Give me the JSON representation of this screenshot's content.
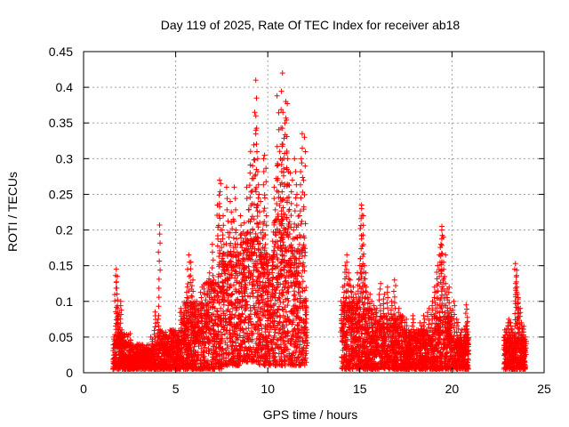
{
  "chart_data": {
    "type": "scatter",
    "title": "Day 119 of 2025, Rate Of TEC Index for receiver ab18",
    "xlabel": "GPS time / hours",
    "ylabel": "ROTI / TECUs",
    "xlim": [
      0,
      25
    ],
    "ylim": [
      0,
      0.45
    ],
    "xticks": [
      "0",
      "5",
      "10",
      "15",
      "20",
      "25"
    ],
    "yticks": [
      "0",
      "0.05",
      "0.1",
      "0.15",
      "0.2",
      "0.25",
      "0.3",
      "0.35",
      "0.4",
      "0.45"
    ],
    "grid": true,
    "marker": "plus",
    "color": "#ff0000",
    "series": [
      {
        "points": [
          [
            1.7,
            0.02
          ],
          [
            1.75,
            0.145
          ],
          [
            1.8,
            0.135
          ],
          [
            1.85,
            0.08
          ],
          [
            1.9,
            0.09
          ],
          [
            2.0,
            0.1
          ],
          [
            2.05,
            0.06
          ],
          [
            2.1,
            0.03
          ],
          [
            2.2,
            0.015
          ],
          [
            2.3,
            0.02
          ],
          [
            2.5,
            0.03
          ],
          [
            2.7,
            0.025
          ],
          [
            2.9,
            0.04
          ],
          [
            3.1,
            0.02
          ],
          [
            3.3,
            0.035
          ],
          [
            3.5,
            0.03
          ],
          [
            3.7,
            0.05
          ],
          [
            3.9,
            0.085
          ],
          [
            4.05,
            0.08
          ],
          [
            4.1,
            0.207
          ],
          [
            4.3,
            0.055
          ],
          [
            4.5,
            0.05
          ],
          [
            4.7,
            0.04
          ],
          [
            4.9,
            0.06
          ],
          [
            5.1,
            0.05
          ],
          [
            5.3,
            0.09
          ],
          [
            5.5,
            0.07
          ],
          [
            5.6,
            0.12
          ],
          [
            5.7,
            0.165
          ],
          [
            5.8,
            0.155
          ],
          [
            5.9,
            0.13
          ],
          [
            6.0,
            0.09
          ],
          [
            6.2,
            0.1
          ],
          [
            6.4,
            0.12
          ],
          [
            6.6,
            0.125
          ],
          [
            6.8,
            0.14
          ],
          [
            7.0,
            0.18
          ],
          [
            7.1,
            0.13
          ],
          [
            7.3,
            0.235
          ],
          [
            7.35,
            0.27
          ],
          [
            7.4,
            0.265
          ],
          [
            7.5,
            0.2
          ],
          [
            7.6,
            0.22
          ],
          [
            7.8,
            0.26
          ],
          [
            7.9,
            0.19
          ],
          [
            8.0,
            0.24
          ],
          [
            8.1,
            0.215
          ],
          [
            8.2,
            0.26
          ],
          [
            8.3,
            0.2
          ],
          [
            8.4,
            0.18
          ],
          [
            8.5,
            0.22
          ],
          [
            8.6,
            0.16
          ],
          [
            8.7,
            0.21
          ],
          [
            8.8,
            0.195
          ],
          [
            8.9,
            0.26
          ],
          [
            9.0,
            0.28
          ],
          [
            9.1,
            0.31
          ],
          [
            9.2,
            0.29
          ],
          [
            9.3,
            0.34
          ],
          [
            9.35,
            0.365
          ],
          [
            9.4,
            0.41
          ],
          [
            9.45,
            0.3
          ],
          [
            9.5,
            0.25
          ],
          [
            9.6,
            0.24
          ],
          [
            9.7,
            0.2
          ],
          [
            9.8,
            0.3
          ],
          [
            9.85,
            0.305
          ],
          [
            9.9,
            0.22
          ],
          [
            10.0,
            0.15
          ],
          [
            10.1,
            0.1
          ],
          [
            10.2,
            0.16
          ],
          [
            10.3,
            0.21
          ],
          [
            10.4,
            0.26
          ],
          [
            10.5,
            0.29
          ],
          [
            10.55,
            0.388
          ],
          [
            10.6,
            0.31
          ],
          [
            10.7,
            0.3
          ],
          [
            10.75,
            0.42
          ],
          [
            10.8,
            0.365
          ],
          [
            10.85,
            0.32
          ],
          [
            10.9,
            0.35
          ],
          [
            11.0,
            0.38
          ],
          [
            11.05,
            0.377
          ],
          [
            11.1,
            0.3
          ],
          [
            11.2,
            0.28
          ],
          [
            11.3,
            0.27
          ],
          [
            11.4,
            0.2
          ],
          [
            11.5,
            0.3
          ],
          [
            11.6,
            0.25
          ],
          [
            11.7,
            0.22
          ],
          [
            11.8,
            0.3
          ],
          [
            11.9,
            0.335
          ],
          [
            12.0,
            0.33
          ],
          [
            12.05,
            0.1
          ],
          [
            12.1,
            0.06
          ],
          [
            14.0,
            0.1
          ],
          [
            14.1,
            0.12
          ],
          [
            14.2,
            0.15
          ],
          [
            14.3,
            0.165
          ],
          [
            14.4,
            0.14
          ],
          [
            14.5,
            0.13
          ],
          [
            14.6,
            0.12
          ],
          [
            14.7,
            0.1
          ],
          [
            14.8,
            0.11
          ],
          [
            14.9,
            0.14
          ],
          [
            15.0,
            0.16
          ],
          [
            15.05,
            0.23
          ],
          [
            15.1,
            0.235
          ],
          [
            15.15,
            0.22
          ],
          [
            15.2,
            0.15
          ],
          [
            15.3,
            0.14
          ],
          [
            15.4,
            0.12
          ],
          [
            15.5,
            0.11
          ],
          [
            15.7,
            0.1
          ],
          [
            15.9,
            0.09
          ],
          [
            16.1,
            0.125
          ],
          [
            16.3,
            0.11
          ],
          [
            16.5,
            0.12
          ],
          [
            16.7,
            0.1
          ],
          [
            16.9,
            0.13
          ],
          [
            17.1,
            0.09
          ],
          [
            17.3,
            0.08
          ],
          [
            17.5,
            0.075
          ],
          [
            17.7,
            0.06
          ],
          [
            17.9,
            0.08
          ],
          [
            18.1,
            0.06
          ],
          [
            18.3,
            0.07
          ],
          [
            18.5,
            0.08
          ],
          [
            18.7,
            0.09
          ],
          [
            18.9,
            0.1
          ],
          [
            19.1,
            0.12
          ],
          [
            19.2,
            0.15
          ],
          [
            19.3,
            0.165
          ],
          [
            19.4,
            0.2
          ],
          [
            19.45,
            0.205
          ],
          [
            19.5,
            0.19
          ],
          [
            19.6,
            0.165
          ],
          [
            19.7,
            0.125
          ],
          [
            19.8,
            0.12
          ],
          [
            19.9,
            0.09
          ],
          [
            20.1,
            0.1
          ],
          [
            20.3,
            0.075
          ],
          [
            20.5,
            0.06
          ],
          [
            20.7,
            0.065
          ],
          [
            20.8,
            0.095
          ],
          [
            20.85,
            0.07
          ],
          [
            22.9,
            0.06
          ],
          [
            23.0,
            0.07
          ],
          [
            23.1,
            0.075
          ],
          [
            23.2,
            0.07
          ],
          [
            23.3,
            0.06
          ],
          [
            23.4,
            0.055
          ],
          [
            23.45,
            0.145
          ],
          [
            23.5,
            0.153
          ],
          [
            23.55,
            0.12
          ],
          [
            23.6,
            0.11
          ],
          [
            23.7,
            0.09
          ],
          [
            23.8,
            0.07
          ],
          [
            23.9,
            0.065
          ],
          [
            24.0,
            0.05
          ]
        ],
        "bands": [
          [
            1.6,
            2.6,
            0.005,
            0.055
          ],
          [
            2.6,
            4.0,
            0.005,
            0.04
          ],
          [
            4.0,
            5.3,
            0.005,
            0.06
          ],
          [
            5.3,
            6.5,
            0.005,
            0.1
          ],
          [
            6.5,
            7.5,
            0.005,
            0.13
          ],
          [
            7.5,
            8.5,
            0.01,
            0.17
          ],
          [
            8.5,
            9.5,
            0.015,
            0.2
          ],
          [
            9.5,
            10.3,
            0.01,
            0.17
          ],
          [
            10.3,
            11.2,
            0.01,
            0.22
          ],
          [
            11.2,
            12.1,
            0.01,
            0.18
          ],
          [
            14.0,
            15.0,
            0.005,
            0.1
          ],
          [
            15.0,
            16.0,
            0.005,
            0.09
          ],
          [
            16.0,
            17.5,
            0.005,
            0.08
          ],
          [
            17.5,
            19.0,
            0.005,
            0.06
          ],
          [
            19.0,
            20.0,
            0.005,
            0.08
          ],
          [
            20.0,
            20.9,
            0.005,
            0.05
          ],
          [
            22.8,
            24.0,
            0.005,
            0.05
          ]
        ]
      }
    ]
  }
}
